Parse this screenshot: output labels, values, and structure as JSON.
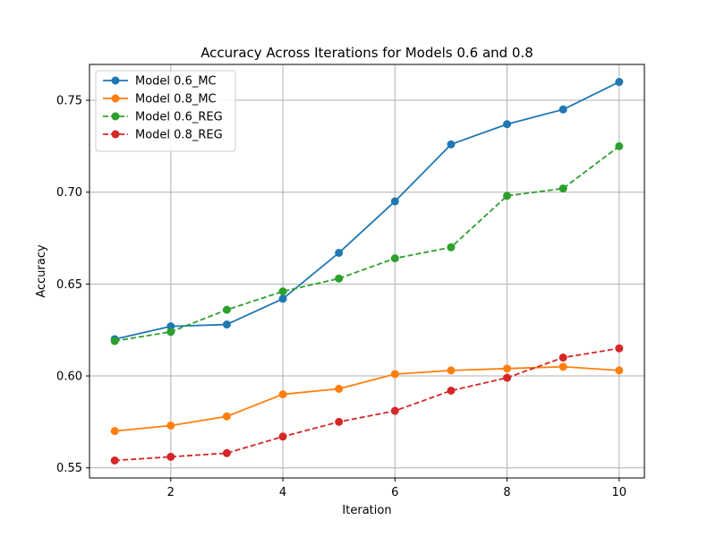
{
  "chart_data": {
    "type": "line",
    "title": "Accuracy Across Iterations for Models 0.6 and 0.8",
    "xlabel": "Iteration",
    "ylabel": "Accuracy",
    "x": [
      1,
      2,
      3,
      4,
      5,
      6,
      7,
      8,
      9,
      10
    ],
    "xlim": [
      0.55,
      10.45
    ],
    "ylim": [
      0.5445,
      0.7695
    ],
    "xticks": [
      2,
      4,
      6,
      8,
      10
    ],
    "yticks": [
      0.55,
      0.6,
      0.65,
      0.7,
      0.75
    ],
    "xtick_labels": [
      "2",
      "4",
      "6",
      "8",
      "10"
    ],
    "ytick_labels": [
      "0.55",
      "0.60",
      "0.65",
      "0.70",
      "0.75"
    ],
    "grid": true,
    "legend_position": "top-left",
    "series": [
      {
        "name": "Model 0.6_MC",
        "color": "#1f77b4",
        "style": "solid",
        "marker": "circle",
        "values": [
          0.62,
          0.627,
          0.628,
          0.642,
          0.667,
          0.695,
          0.726,
          0.737,
          0.745,
          0.76
        ]
      },
      {
        "name": "Model 0.8_MC",
        "color": "#ff7f0e",
        "style": "solid",
        "marker": "circle",
        "values": [
          0.57,
          0.573,
          0.578,
          0.59,
          0.593,
          0.601,
          0.603,
          0.604,
          0.605,
          0.603
        ]
      },
      {
        "name": "Model 0.6_REG",
        "color": "#2ca02c",
        "style": "dashed",
        "marker": "circle",
        "values": [
          0.619,
          0.624,
          0.636,
          0.646,
          0.653,
          0.664,
          0.67,
          0.698,
          0.702,
          0.725
        ]
      },
      {
        "name": "Model 0.8_REG",
        "color": "#d62728",
        "style": "dashed",
        "marker": "circle",
        "values": [
          0.554,
          0.556,
          0.558,
          0.567,
          0.575,
          0.581,
          0.592,
          0.599,
          0.61,
          0.615
        ]
      }
    ]
  }
}
